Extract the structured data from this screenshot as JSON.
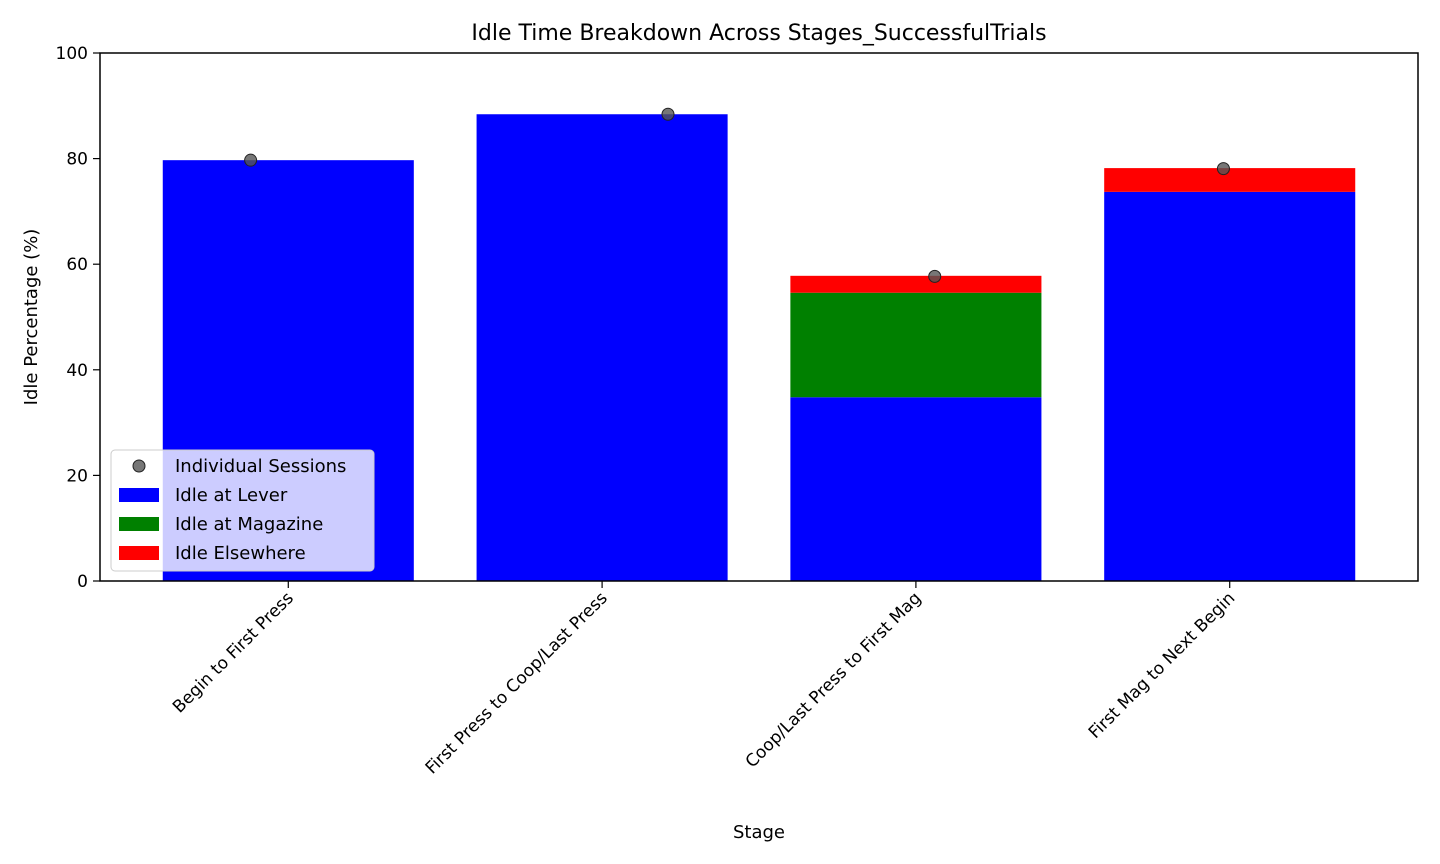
{
  "chart_data": {
    "type": "bar",
    "stacked": true,
    "title": "Idle Time Breakdown Across Stages_SuccessfulTrials",
    "xlabel": "Stage",
    "ylabel": "Idle Percentage (%)",
    "ylim": [
      0,
      100
    ],
    "yticks": [
      0,
      20,
      40,
      60,
      80,
      100
    ],
    "grid": false,
    "legend_position": "lower-left",
    "categories": [
      "Begin to First Press",
      "First Press to Coop/Last Press",
      "Coop/Last Press to First Mag",
      "First Mag to Next Begin"
    ],
    "series": [
      {
        "name": "Idle at Lever",
        "color": "#0000ff",
        "values": [
          79.7,
          88.4,
          34.8,
          73.7
        ]
      },
      {
        "name": "Idle at Magazine",
        "color": "#008000",
        "values": [
          0,
          0,
          19.8,
          0
        ]
      },
      {
        "name": "Idle Elsewhere",
        "color": "#ff0000",
        "values": [
          0,
          0,
          3.2,
          4.5
        ]
      }
    ],
    "points": {
      "name": "Individual Sessions",
      "color": "#555555",
      "values": [
        79.7,
        88.4,
        57.7,
        78.1
      ],
      "x_offsets": [
        -0.12,
        0.21,
        0.06,
        -0.02
      ]
    }
  }
}
